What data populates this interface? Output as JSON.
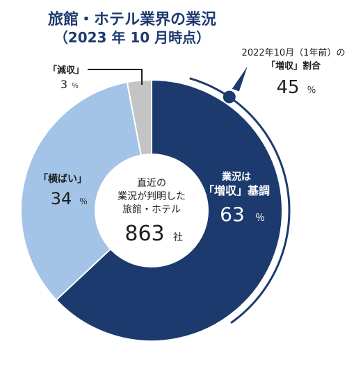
{
  "title": "旅館・ホテル業界の業況",
  "subtitle": "（2023 年 10 月時点）",
  "colors": {
    "increase": "#1c3a6e",
    "flat": "#a3c4e6",
    "decrease": "#c4c4c4",
    "text": "#1e1e1e",
    "title": "#1e3a70"
  },
  "chart_data": {
    "type": "pie",
    "style": "donut",
    "slices": [
      {
        "key": "increase",
        "label_line1": "業況は",
        "label_line2": "「増収」基調",
        "value": 63,
        "unit": "％"
      },
      {
        "key": "flat",
        "label": "「横ばい」",
        "value": 34,
        "unit": "％"
      },
      {
        "key": "decrease",
        "label": "「減収」",
        "value": 3,
        "unit": "％"
      }
    ],
    "center": {
      "line1": "直近の",
      "line2": "業況が判明した",
      "line3": "旅館・ホテル",
      "count": "863",
      "count_unit": "社"
    },
    "comparison": {
      "line1": "2022年10月（1年前）の",
      "line2": "「増収」割合",
      "value": 45,
      "unit": "％"
    }
  }
}
